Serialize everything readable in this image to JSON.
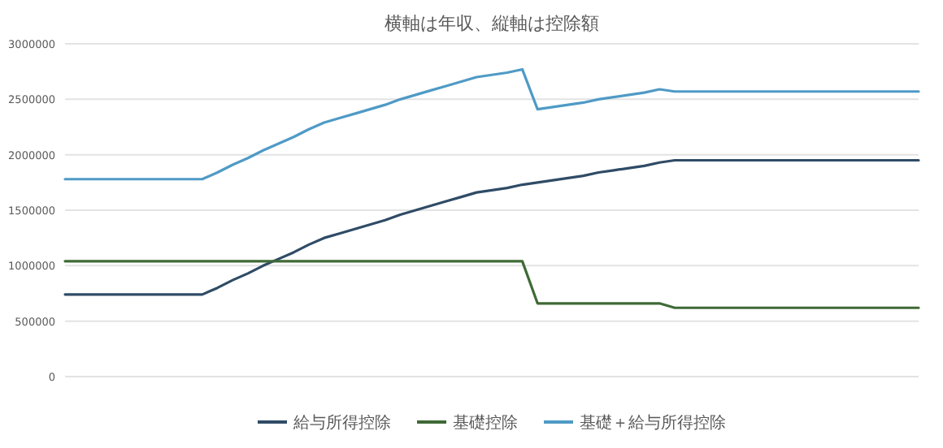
{
  "chart_data": {
    "type": "line",
    "title": "横軸は年収、縦軸は控除額",
    "categories": [
      null,
      null,
      null,
      null,
      null,
      null,
      null,
      null,
      null,
      null,
      null,
      null,
      null,
      null,
      null,
      null,
      null,
      null,
      null,
      null,
      null,
      null,
      null,
      null,
      null,
      null,
      null,
      null,
      null,
      null,
      null,
      null,
      null,
      null,
      null,
      null,
      null,
      null,
      null,
      null,
      null,
      null,
      null,
      null,
      null,
      null,
      null,
      null,
      null,
      null,
      null,
      null,
      null,
      null,
      null,
      null,
      null
    ],
    "series": [
      {
        "name": "給与所得控除",
        "color": "#2f4b66",
        "values": [
          740000,
          740000,
          740000,
          740000,
          740000,
          740000,
          740000,
          740000,
          740000,
          740000,
          800000,
          870000,
          930000,
          1000000,
          1060000,
          1120000,
          1190000,
          1250000,
          1290000,
          1330000,
          1370000,
          1410000,
          1460000,
          1500000,
          1540000,
          1580000,
          1620000,
          1660000,
          1680000,
          1700000,
          1730000,
          1750000,
          1770000,
          1790000,
          1810000,
          1840000,
          1860000,
          1880000,
          1900000,
          1930000,
          1950000,
          1950000,
          1950000,
          1950000,
          1950000,
          1950000,
          1950000,
          1950000,
          1950000,
          1950000,
          1950000,
          1950000,
          1950000,
          1950000,
          1950000,
          1950000,
          1950000
        ]
      },
      {
        "name": "基礎控除",
        "color": "#3f6a36",
        "values": [
          1040000,
          1040000,
          1040000,
          1040000,
          1040000,
          1040000,
          1040000,
          1040000,
          1040000,
          1040000,
          1040000,
          1040000,
          1040000,
          1040000,
          1040000,
          1040000,
          1040000,
          1040000,
          1040000,
          1040000,
          1040000,
          1040000,
          1040000,
          1040000,
          1040000,
          1040000,
          1040000,
          1040000,
          1040000,
          1040000,
          1040000,
          660000,
          660000,
          660000,
          660000,
          660000,
          660000,
          660000,
          660000,
          660000,
          620000,
          620000,
          620000,
          620000,
          620000,
          620000,
          620000,
          620000,
          620000,
          620000,
          620000,
          620000,
          620000,
          620000,
          620000,
          620000,
          620000
        ]
      },
      {
        "name": "基礎＋給与所得控除",
        "color": "#4f9ac6",
        "values": [
          1780000,
          1780000,
          1780000,
          1780000,
          1780000,
          1780000,
          1780000,
          1780000,
          1780000,
          1780000,
          1840000,
          1910000,
          1970000,
          2040000,
          2100000,
          2160000,
          2230000,
          2290000,
          2330000,
          2370000,
          2410000,
          2450000,
          2500000,
          2540000,
          2580000,
          2620000,
          2660000,
          2700000,
          2720000,
          2740000,
          2770000,
          2410000,
          2430000,
          2450000,
          2470000,
          2500000,
          2520000,
          2540000,
          2560000,
          2590000,
          2570000,
          2570000,
          2570000,
          2570000,
          2570000,
          2570000,
          2570000,
          2570000,
          2570000,
          2570000,
          2570000,
          2570000,
          2570000,
          2570000,
          2570000,
          2570000,
          2570000
        ]
      }
    ],
    "ylim": [
      0,
      3000000
    ],
    "yticks": [
      0,
      500000,
      1000000,
      1500000,
      2000000,
      2500000,
      3000000
    ],
    "grid": "y",
    "legend": "bottom"
  }
}
